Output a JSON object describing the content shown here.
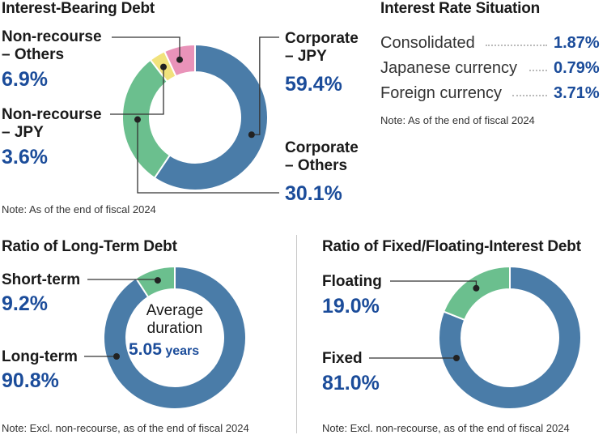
{
  "chart_data": [
    {
      "type": "pie",
      "title": "Interest-Bearing Debt",
      "note": "Note: As of the end of fiscal 2024",
      "slices": [
        {
          "name_line1": "Corporate",
          "name_line2": "– JPY",
          "value": 59.4,
          "label": "59.4%",
          "color": "#4a7ca8"
        },
        {
          "name_line1": "Corporate",
          "name_line2": "– Others",
          "value": 30.1,
          "label": "30.1%",
          "color": "#6bbf8e"
        },
        {
          "name_line1": "Non-recourse",
          "name_line2": "– JPY",
          "value": 3.6,
          "label": "3.6%",
          "color": "#f1e27c"
        },
        {
          "name_line1": "Non-recourse",
          "name_line2": "– Others",
          "value": 6.9,
          "label": "6.9%",
          "color": "#e993b9"
        }
      ]
    },
    {
      "type": "pie",
      "title": "Ratio of Long-Term Debt",
      "note": "Note: Excl. non-recourse, as of the end of fiscal 2024",
      "center_line1": "Average",
      "center_line2": "duration",
      "center_value": "5.05",
      "center_unit": " years",
      "slices": [
        {
          "name": "Long-term",
          "value": 90.8,
          "label": "90.8%",
          "color": "#4a7ca8"
        },
        {
          "name": "Short-term",
          "value": 9.2,
          "label": "9.2%",
          "color": "#6bbf8e"
        }
      ]
    },
    {
      "type": "pie",
      "title": "Ratio of Fixed/Floating-Interest Debt",
      "note": "Note: Excl. non-recourse, as of the end of fiscal 2024",
      "slices": [
        {
          "name": "Fixed",
          "value": 81.0,
          "label": "81.0%",
          "color": "#4a7ca8"
        },
        {
          "name": "Floating",
          "value": 19.0,
          "label": "19.0%",
          "color": "#6bbf8e"
        }
      ]
    },
    {
      "type": "table",
      "title": "Interest Rate Situation",
      "note": "Note: As of the end of fiscal 2024",
      "rows": [
        {
          "name": "Consolidated",
          "value": "1.87%"
        },
        {
          "name": "Japanese currency",
          "value": "0.79%"
        },
        {
          "name": "Foreign currency",
          "value": "3.71%"
        }
      ]
    }
  ]
}
